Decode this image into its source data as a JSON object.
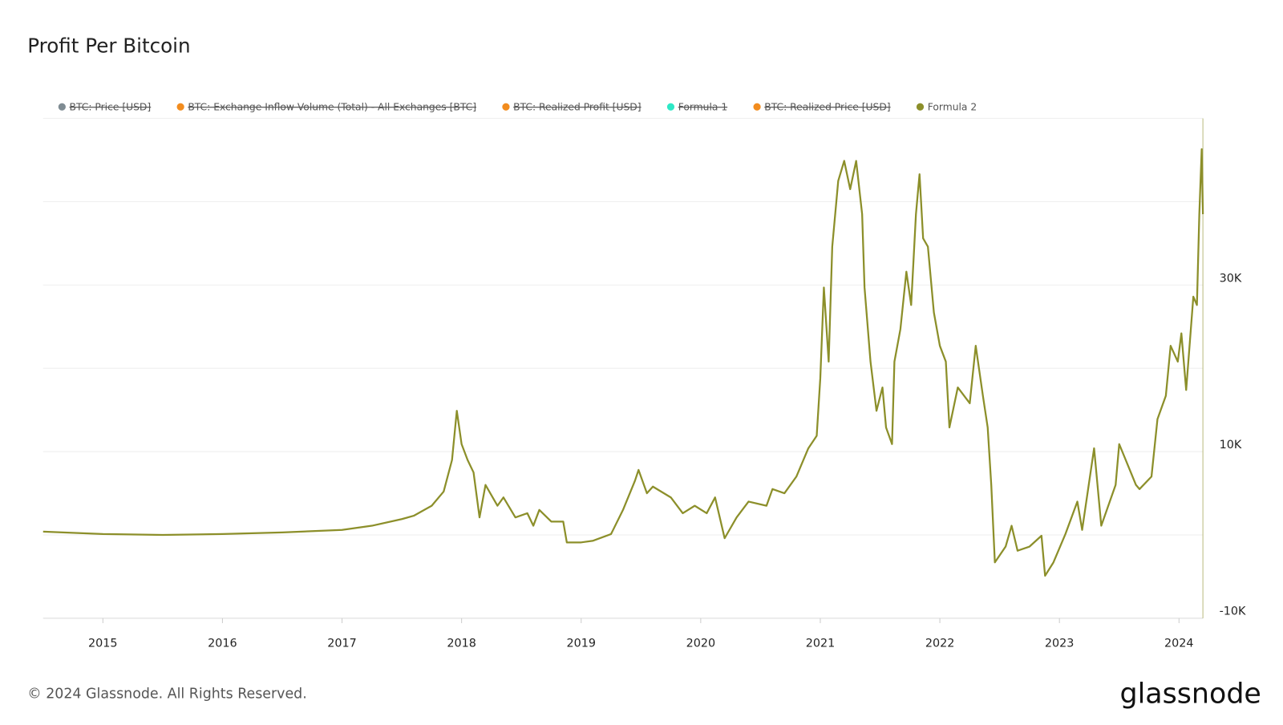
{
  "chart_data": {
    "type": "line",
    "title": "Profit Per Bitcoin",
    "hidden_series": [
      {
        "name": "BTC: Price [USD]",
        "color": "#7f8c93"
      },
      {
        "name": "BTC: Exchange Inflow Volume (Total) - All Exchanges [BTC]",
        "color": "#f28c1e"
      },
      {
        "name": "BTC: Realized Profit [USD]",
        "color": "#f28c1e"
      },
      {
        "name": "Formula 1",
        "color": "#2ee8c6"
      },
      {
        "name": "BTC: Realized Price [USD]",
        "color": "#f28c1e"
      }
    ],
    "x": [
      2014.5,
      2015.0,
      2015.5,
      2016.0,
      2016.5,
      2017.0,
      2017.25,
      2017.5,
      2017.6,
      2017.75,
      2017.85,
      2017.92,
      2017.96,
      2018.0,
      2018.05,
      2018.1,
      2018.15,
      2018.2,
      2018.3,
      2018.35,
      2018.45,
      2018.55,
      2018.6,
      2018.65,
      2018.75,
      2018.85,
      2018.88,
      2019.0,
      2019.1,
      2019.25,
      2019.35,
      2019.45,
      2019.48,
      2019.55,
      2019.6,
      2019.75,
      2019.85,
      2019.95,
      2020.05,
      2020.12,
      2020.2,
      2020.3,
      2020.4,
      2020.55,
      2020.6,
      2020.7,
      2020.8,
      2020.9,
      2020.97,
      2021.0,
      2021.03,
      2021.07,
      2021.1,
      2021.15,
      2021.2,
      2021.25,
      2021.3,
      2021.35,
      2021.37,
      2021.42,
      2021.47,
      2021.52,
      2021.55,
      2021.6,
      2021.62,
      2021.67,
      2021.72,
      2021.76,
      2021.8,
      2021.83,
      2021.86,
      2021.9,
      2021.95,
      2022.0,
      2022.05,
      2022.08,
      2022.15,
      2022.25,
      2022.3,
      2022.36,
      2022.4,
      2022.43,
      2022.46,
      2022.55,
      2022.6,
      2022.65,
      2022.75,
      2022.85,
      2022.88,
      2022.95,
      2023.05,
      2023.15,
      2023.19,
      2023.29,
      2023.35,
      2023.47,
      2023.5,
      2023.6,
      2023.64,
      2023.67,
      2023.77,
      2023.82,
      2023.89,
      2023.93,
      2023.99,
      2024.02,
      2024.06,
      2024.12,
      2024.15,
      2024.17,
      2024.19,
      2024.2
    ],
    "series": [
      {
        "name": "Formula 2",
        "color": "#8c8f2a",
        "values": [
          400,
          100,
          0,
          100,
          300,
          600,
          1100,
          1900,
          2300,
          3500,
          5200,
          9000,
          14900,
          10900,
          9000,
          7500,
          2100,
          6000,
          3500,
          4500,
          2100,
          2600,
          1100,
          3000,
          1600,
          1600,
          -900,
          -900,
          -700,
          100,
          3000,
          6500,
          7800,
          5000,
          5800,
          4500,
          2600,
          3500,
          2600,
          4500,
          -400,
          2100,
          4000,
          3500,
          5500,
          5000,
          7000,
          10400,
          11900,
          18800,
          29700,
          20800,
          34600,
          42500,
          44900,
          41500,
          44900,
          38500,
          29700,
          20800,
          14900,
          17700,
          12900,
          10900,
          20800,
          24700,
          31600,
          27600,
          38500,
          43300,
          35600,
          34600,
          26700,
          22700,
          20800,
          12900,
          17700,
          15800,
          22700,
          16700,
          12900,
          6000,
          -3300,
          -1400,
          1100,
          -1900,
          -1400,
          -100,
          -4900,
          -3300,
          100,
          4000,
          600,
          10400,
          1100,
          6000,
          10900,
          7400,
          6000,
          5500,
          7000,
          13900,
          16700,
          22700,
          20800,
          24200,
          17400,
          28600,
          27600,
          38500,
          46300,
          38500
        ]
      }
    ],
    "xlim": [
      2014.5,
      2024.2
    ],
    "xticks": [
      2015,
      2016,
      2017,
      2018,
      2019,
      2020,
      2021,
      2022,
      2023,
      2024
    ],
    "ylim": [
      -10000,
      50000
    ],
    "yticks": [
      {
        "value": -10000,
        "label": "-10K"
      },
      {
        "value": 10000,
        "label": "10K"
      },
      {
        "value": 30000,
        "label": "30K"
      }
    ],
    "ygrid": [
      0,
      20000,
      40000,
      50000
    ],
    "footer": "© 2024 Glassnode. All Rights Reserved.",
    "brand": "glassnode"
  }
}
